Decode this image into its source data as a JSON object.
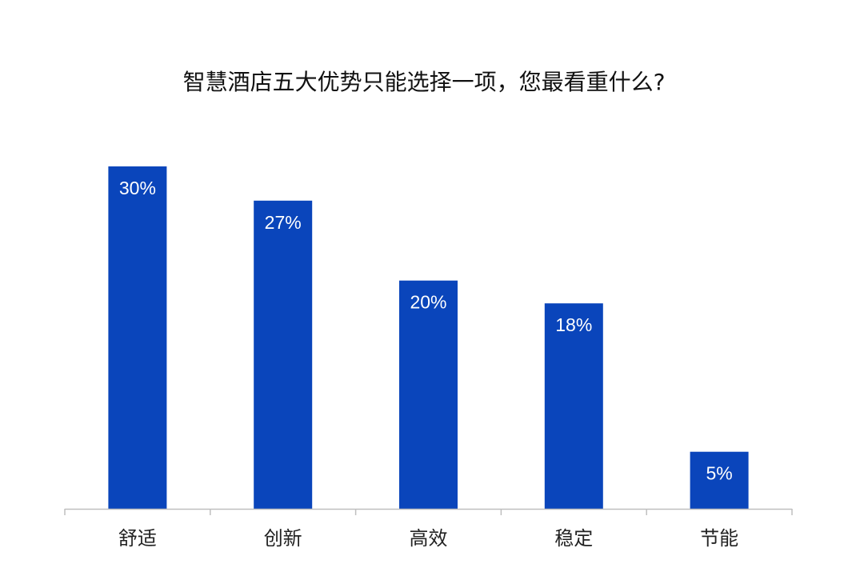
{
  "chart_data": {
    "type": "bar",
    "title": "智慧酒店五大优势只能选择一项，您最看重什么?",
    "categories": [
      "舒适",
      "创新",
      "高效",
      "稳定",
      "节能"
    ],
    "values": [
      30,
      27,
      20,
      18,
      5
    ],
    "value_labels": [
      "30%",
      "27%",
      "20%",
      "18%",
      "5%"
    ],
    "xlabel": "",
    "ylabel": "",
    "ylim": [
      0,
      30
    ],
    "grid": false,
    "legend": "none",
    "colors": {
      "bar": "#0a45bb",
      "axis": "#bfbfbf",
      "title": "#111111",
      "category_text": "#222222",
      "label_text": "#ffffff"
    }
  }
}
